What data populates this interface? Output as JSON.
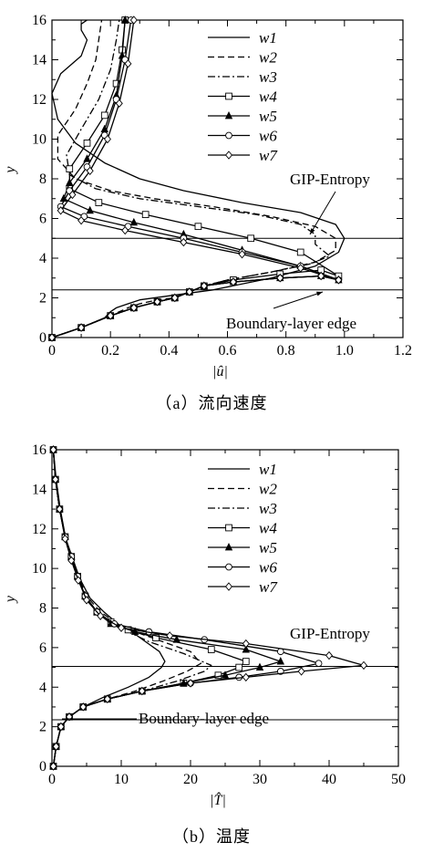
{
  "chart_data": [
    {
      "type": "line",
      "caption": "（a）流向速度",
      "xlabel": "|û|",
      "ylabel": "y",
      "xlim": [
        0,
        1.2
      ],
      "ylim": [
        0,
        16
      ],
      "xticks": [
        "0",
        "0.2",
        "0.4",
        "0.6",
        "0.8",
        "1.0",
        "1.2"
      ],
      "yticks": [
        "0",
        "2",
        "4",
        "6",
        "8",
        "10",
        "12",
        "14",
        "16"
      ],
      "legend": [
        "w1",
        "w2",
        "w3",
        "w4",
        "w5",
        "w6",
        "w7"
      ],
      "annotations": {
        "upper": "GIP-Entropy",
        "lower": "Boundary-layer edge"
      },
      "hlines": [
        5.0,
        2.4
      ],
      "series": [
        {
          "name": "w1",
          "style": "solid",
          "marker": "none",
          "x": [
            0,
            0.1,
            0.18,
            0.2,
            0.22,
            0.26,
            0.3,
            0.4,
            0.55,
            0.75,
            0.9,
            0.98,
            1.0,
            0.97,
            0.85,
            0.65,
            0.45,
            0.3,
            0.18,
            0.08,
            0.02,
            0,
            0.03,
            0.1,
            0.12,
            0.1,
            0.1,
            0.12
          ],
          "y": [
            0,
            0.5,
            1.0,
            1.3,
            1.5,
            1.7,
            1.9,
            2.1,
            2.4,
            3.0,
            3.6,
            4.3,
            5.0,
            5.7,
            6.3,
            6.8,
            7.4,
            8.0,
            8.8,
            9.8,
            11.0,
            12.3,
            13.3,
            14.2,
            15.0,
            15.5,
            15.8,
            16.0
          ]
        },
        {
          "name": "w2",
          "style": "dashed",
          "marker": "none",
          "x": [
            0,
            0.1,
            0.2,
            0.26,
            0.3,
            0.36,
            0.42,
            0.47,
            0.52,
            0.6,
            0.75,
            0.9,
            0.97,
            0.97,
            0.9,
            0.75,
            0.55,
            0.35,
            0.2,
            0.08,
            0.02,
            0.02,
            0.08,
            0.12,
            0.15,
            0.16,
            0.17
          ],
          "y": [
            0,
            0.5,
            1.1,
            1.5,
            1.7,
            1.9,
            2.0,
            2.3,
            2.6,
            2.9,
            3.3,
            3.8,
            4.4,
            5.0,
            5.6,
            6.1,
            6.6,
            7.0,
            7.4,
            8.0,
            9.0,
            10.2,
            11.5,
            12.8,
            14.0,
            15.0,
            16.0
          ]
        },
        {
          "name": "w3",
          "style": "dashdot",
          "marker": "none",
          "x": [
            0,
            0.1,
            0.2,
            0.28,
            0.36,
            0.42,
            0.47,
            0.52,
            0.6,
            0.75,
            0.88,
            0.95,
            0.9,
            0.9,
            0.85,
            0.7,
            0.5,
            0.3,
            0.15,
            0.06,
            0.05,
            0.1,
            0.16,
            0.2,
            0.22,
            0.23
          ],
          "y": [
            0,
            0.5,
            1.1,
            1.5,
            1.8,
            2.0,
            2.3,
            2.6,
            2.9,
            3.3,
            3.7,
            4.1,
            4.7,
            5.2,
            5.7,
            6.2,
            6.6,
            7.0,
            7.5,
            8.2,
            9.2,
            10.5,
            12.0,
            13.5,
            15.0,
            16.0
          ]
        },
        {
          "name": "w4",
          "style": "solid",
          "marker": "square",
          "x": [
            0,
            0.1,
            0.2,
            0.28,
            0.36,
            0.42,
            0.47,
            0.52,
            0.62,
            0.78,
            0.92,
            0.98,
            0.85,
            0.68,
            0.5,
            0.32,
            0.16,
            0.06,
            0.06,
            0.12,
            0.18,
            0.22,
            0.24,
            0.25
          ],
          "y": [
            0,
            0.5,
            1.1,
            1.5,
            1.8,
            2.0,
            2.3,
            2.6,
            2.9,
            3.2,
            3.4,
            3.1,
            4.3,
            5.0,
            5.6,
            6.2,
            6.8,
            7.5,
            8.5,
            9.8,
            11.2,
            12.8,
            14.5,
            16.0
          ]
        },
        {
          "name": "w5",
          "style": "solid",
          "marker": "triangle",
          "x": [
            0,
            0.1,
            0.2,
            0.28,
            0.36,
            0.42,
            0.47,
            0.52,
            0.62,
            0.78,
            0.92,
            0.98,
            0.85,
            0.65,
            0.45,
            0.28,
            0.13,
            0.04,
            0.06,
            0.12,
            0.18,
            0.22,
            0.24,
            0.25
          ],
          "y": [
            0,
            0.5,
            1.1,
            1.5,
            1.8,
            2.0,
            2.3,
            2.6,
            2.8,
            3.0,
            3.1,
            2.9,
            3.6,
            4.4,
            5.2,
            5.8,
            6.4,
            7.0,
            7.8,
            9.0,
            10.5,
            12.2,
            14.2,
            16.0
          ]
        },
        {
          "name": "w6",
          "style": "solid",
          "marker": "circle",
          "x": [
            0,
            0.1,
            0.2,
            0.28,
            0.36,
            0.42,
            0.47,
            0.52,
            0.62,
            0.78,
            0.92,
            0.98,
            0.85,
            0.65,
            0.45,
            0.26,
            0.11,
            0.03,
            0.06,
            0.12,
            0.18,
            0.22,
            0.25,
            0.27
          ],
          "y": [
            0,
            0.5,
            1.1,
            1.5,
            1.8,
            2.0,
            2.3,
            2.6,
            2.8,
            3.0,
            3.1,
            2.9,
            3.6,
            4.3,
            5.0,
            5.6,
            6.1,
            6.6,
            7.4,
            8.6,
            10.2,
            12.0,
            14.0,
            16.0
          ]
        },
        {
          "name": "w7",
          "style": "solid",
          "marker": "diamond",
          "x": [
            0,
            0.1,
            0.2,
            0.28,
            0.36,
            0.42,
            0.47,
            0.52,
            0.62,
            0.78,
            0.92,
            0.98,
            0.85,
            0.65,
            0.45,
            0.25,
            0.1,
            0.03,
            0.07,
            0.13,
            0.19,
            0.23,
            0.26,
            0.28
          ],
          "y": [
            0,
            0.5,
            1.1,
            1.5,
            1.8,
            2.0,
            2.3,
            2.6,
            2.8,
            3.0,
            3.1,
            2.9,
            3.5,
            4.2,
            4.8,
            5.4,
            5.9,
            6.4,
            7.2,
            8.4,
            10.0,
            11.8,
            13.8,
            16.0
          ]
        }
      ]
    },
    {
      "type": "line",
      "caption": "（b）温度",
      "xlabel": "|T̂|",
      "ylabel": "y",
      "xlim": [
        0,
        50
      ],
      "ylim": [
        0,
        16
      ],
      "xticks": [
        "0",
        "10",
        "20",
        "30",
        "40",
        "50"
      ],
      "yticks": [
        "0",
        "2",
        "4",
        "6",
        "8",
        "10",
        "12",
        "14",
        "16"
      ],
      "legend": [
        "w1",
        "w2",
        "w3",
        "w4",
        "w5",
        "w6",
        "w7"
      ],
      "annotations": {
        "upper": "GIP-Entropy",
        "lower": "Boundary-layer edge"
      },
      "hlines": [
        5.05,
        2.35
      ],
      "series": [
        {
          "name": "w1",
          "style": "solid",
          "marker": "none",
          "x": [
            0.2,
            0.6,
            1.3,
            2.5,
            4.5,
            7.5,
            11,
            14,
            15.8,
            16.3,
            15.5,
            13.5,
            11.5,
            9.5,
            7.5,
            5.5,
            4,
            3,
            2,
            1.2,
            0.6,
            0.2
          ],
          "y": [
            0,
            1,
            2,
            2.5,
            3,
            3.5,
            4,
            4.5,
            5.0,
            5.3,
            5.8,
            6.3,
            6.8,
            7.2,
            7.8,
            8.5,
            9.5,
            10.5,
            11.5,
            13,
            14.5,
            16
          ]
        },
        {
          "name": "w2",
          "style": "dashed",
          "marker": "none",
          "x": [
            0.2,
            0.6,
            1.3,
            2.5,
            4.5,
            8,
            12,
            16,
            19.5,
            21.5,
            20,
            16,
            12,
            9.5,
            7,
            5,
            3.8,
            2.8,
            1.9,
            1.1,
            0.5,
            0.2
          ],
          "y": [
            0,
            1,
            2,
            2.5,
            3,
            3.4,
            3.8,
            4.3,
            4.8,
            5.2,
            5.8,
            6.3,
            6.8,
            7.2,
            7.8,
            8.6,
            9.6,
            10.6,
            11.6,
            13,
            14.5,
            16
          ]
        },
        {
          "name": "w3",
          "style": "dashdot",
          "marker": "none",
          "x": [
            0.2,
            0.6,
            1.3,
            2.5,
            4.5,
            8,
            13,
            18,
            22,
            23,
            19,
            14,
            11,
            8.5,
            6.5,
            4.8,
            3.7,
            2.8,
            1.9,
            1.1,
            0.5,
            0.2
          ],
          "y": [
            0,
            1,
            2,
            2.5,
            3,
            3.4,
            3.8,
            4.3,
            4.8,
            5.1,
            5.7,
            6.3,
            6.8,
            7.2,
            7.8,
            8.6,
            9.6,
            10.6,
            11.6,
            13,
            14.5,
            16
          ]
        },
        {
          "name": "w4",
          "style": "solid",
          "marker": "square",
          "x": [
            0.2,
            0.6,
            1.3,
            2.5,
            4.5,
            8,
            13,
            19,
            24,
            27,
            28,
            23,
            15,
            11,
            8.5,
            6.5,
            4.8,
            3.7,
            2.8,
            1.9,
            1.1,
            0.5,
            0.2
          ],
          "y": [
            0,
            1,
            2,
            2.5,
            3,
            3.4,
            3.8,
            4.2,
            4.6,
            5.0,
            5.3,
            5.9,
            6.5,
            6.9,
            7.3,
            7.8,
            8.6,
            9.6,
            10.6,
            11.6,
            13,
            14.5,
            16
          ]
        },
        {
          "name": "w5",
          "style": "solid",
          "marker": "triangle",
          "x": [
            0.2,
            0.6,
            1.3,
            2.5,
            4.5,
            8,
            13,
            19,
            25,
            30,
            33,
            28,
            18,
            12,
            8.5,
            6.5,
            4.8,
            3.7,
            2.8,
            1.9,
            1.1,
            0.5,
            0.2
          ],
          "y": [
            0,
            1,
            2,
            2.5,
            3,
            3.4,
            3.8,
            4.2,
            4.6,
            5.0,
            5.3,
            5.9,
            6.4,
            6.8,
            7.2,
            7.8,
            8.6,
            9.6,
            10.6,
            11.6,
            13,
            14.5,
            16
          ]
        },
        {
          "name": "w6",
          "style": "solid",
          "marker": "circle",
          "x": [
            0.2,
            0.6,
            1.3,
            2.5,
            4.5,
            8,
            13,
            20,
            27,
            33,
            38.5,
            33,
            22,
            14,
            9,
            6.5,
            4.8,
            3.7,
            2.8,
            1.9,
            1.1,
            0.5,
            0.2
          ],
          "y": [
            0,
            1,
            2,
            2.5,
            3,
            3.4,
            3.8,
            4.2,
            4.5,
            4.8,
            5.2,
            5.8,
            6.4,
            6.8,
            7.2,
            7.8,
            8.6,
            9.6,
            10.6,
            11.6,
            13,
            14.5,
            16
          ]
        },
        {
          "name": "w7",
          "style": "solid",
          "marker": "diamond",
          "x": [
            0.2,
            0.6,
            1.3,
            2.5,
            4.5,
            8,
            13,
            20,
            28,
            36,
            45,
            40,
            28,
            17,
            10,
            7,
            5,
            3.8,
            2.8,
            1.9,
            1.1,
            0.5,
            0.2
          ],
          "y": [
            0,
            1,
            2,
            2.5,
            3,
            3.4,
            3.8,
            4.2,
            4.5,
            4.8,
            5.1,
            5.6,
            6.2,
            6.6,
            7.0,
            7.6,
            8.4,
            9.4,
            10.4,
            11.5,
            13,
            14.5,
            16
          ]
        }
      ]
    }
  ]
}
